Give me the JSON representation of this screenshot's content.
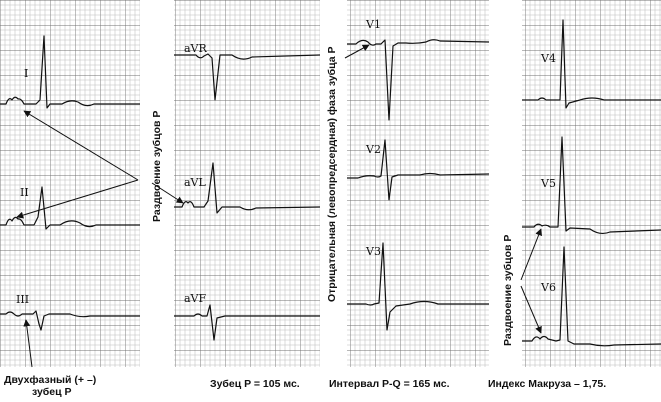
{
  "leads": {
    "I": "I",
    "II": "II",
    "III": "III",
    "aVR": "aVR",
    "aVL": "aVL",
    "aVF": "aVF",
    "V1": "V1",
    "V2": "V2",
    "V3": "V3",
    "V4": "V4",
    "V5": "V5",
    "V6": "V6"
  },
  "side_labels": {
    "p_split_limb": "Раздвоение зубцов P",
    "negative_phase": "Отрицательная (левопредсердная) фаза зубца P",
    "p_split_chest": "Раздвоение зубцов P"
  },
  "captions": {
    "biphasic_line1": "Двухфазный (+ –)",
    "biphasic_line2": "зубец P",
    "p_wave": "Зубец P = 105 мс.",
    "pq_interval": "Интервал P-Q = 165 мс.",
    "macruz_index": "Индекс Макруза – 1,75."
  },
  "colors": {
    "grid_minor": "#b8b8b8",
    "grid_major": "#6e6e6e",
    "trace": "#111111",
    "background": "#ffffff"
  }
}
